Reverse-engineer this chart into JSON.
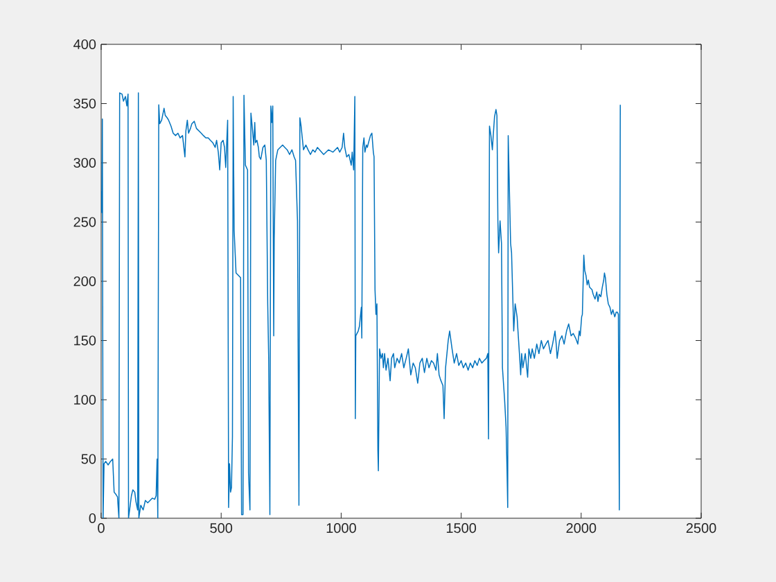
{
  "chart_data": {
    "type": "line",
    "color": "#0072bd",
    "line_style": "solid",
    "xlim": [
      0,
      2500
    ],
    "ylim": [
      0,
      400
    ],
    "xticks": [
      0,
      500,
      1000,
      1500,
      2000,
      2500
    ],
    "yticks": [
      0,
      50,
      100,
      150,
      200,
      250,
      300,
      350,
      400
    ],
    "x": [
      0,
      2,
      5,
      8,
      12,
      19,
      29,
      39,
      48,
      54,
      62,
      68,
      74,
      77,
      87,
      93,
      101,
      107,
      112,
      114,
      126,
      132,
      140,
      145,
      152,
      155,
      157,
      159,
      165,
      175,
      184,
      194,
      213,
      223,
      229,
      233,
      236,
      240,
      244,
      252,
      262,
      267,
      275,
      281,
      291,
      300,
      310,
      320,
      329,
      339,
      349,
      353,
      359,
      364,
      372,
      378,
      388,
      397,
      407,
      417,
      426,
      436,
      446,
      455,
      465,
      475,
      481,
      488,
      494,
      500,
      508,
      514,
      519,
      527,
      531,
      535,
      539,
      543,
      547,
      550,
      554,
      562,
      572,
      581,
      585,
      591,
      595,
      601,
      610,
      614,
      620,
      624,
      630,
      636,
      640,
      643,
      649,
      655,
      659,
      665,
      674,
      682,
      688,
      694,
      698,
      703,
      707,
      711,
      715,
      719,
      721,
      727,
      736,
      746,
      756,
      765,
      775,
      785,
      795,
      804,
      810,
      818,
      824,
      828,
      833,
      843,
      853,
      862,
      872,
      882,
      891,
      901,
      927,
      947,
      966,
      985,
      994,
      1004,
      1010,
      1015,
      1023,
      1032,
      1042,
      1046,
      1052,
      1057,
      1059,
      1061,
      1071,
      1076,
      1084,
      1086,
      1090,
      1095,
      1099,
      1105,
      1109,
      1114,
      1122,
      1128,
      1134,
      1137,
      1141,
      1145,
      1149,
      1153,
      1155,
      1160,
      1166,
      1172,
      1176,
      1181,
      1187,
      1195,
      1204,
      1210,
      1218,
      1223,
      1233,
      1242,
      1252,
      1261,
      1271,
      1280,
      1290,
      1300,
      1309,
      1319,
      1328,
      1338,
      1347,
      1357,
      1366,
      1376,
      1385,
      1395,
      1401,
      1408,
      1414,
      1424,
      1429,
      1435,
      1446,
      1452,
      1462,
      1471,
      1481,
      1490,
      1500,
      1509,
      1519,
      1529,
      1538,
      1548,
      1557,
      1567,
      1576,
      1586,
      1595,
      1605,
      1611,
      1614,
      1618,
      1624,
      1630,
      1633,
      1639,
      1645,
      1649,
      1653,
      1656,
      1662,
      1668,
      1672,
      1681,
      1687,
      1691,
      1694,
      1696,
      1706,
      1710,
      1719,
      1725,
      1733,
      1738,
      1744,
      1748,
      1752,
      1757,
      1767,
      1777,
      1782,
      1790,
      1796,
      1805,
      1815,
      1824,
      1834,
      1843,
      1853,
      1862,
      1872,
      1881,
      1891,
      1896,
      1900,
      1910,
      1920,
      1929,
      1939,
      1948,
      1958,
      1967,
      1977,
      1986,
      1992,
      1996,
      2002,
      2005,
      2011,
      2015,
      2020,
      2025,
      2030,
      2035,
      2045,
      2050,
      2058,
      2065,
      2070,
      2075,
      2082,
      2088,
      2094,
      2097,
      2101,
      2107,
      2113,
      2120,
      2126,
      2132,
      2140,
      2146,
      2151,
      2155,
      2159,
      2163
    ],
    "values": [
      276,
      258,
      337,
      0,
      46,
      48,
      45,
      48,
      50,
      22,
      20,
      18,
      0,
      359,
      358,
      352,
      356,
      348,
      358,
      0,
      19,
      24,
      22,
      14,
      7,
      359,
      0,
      3,
      11,
      7,
      15,
      13,
      17,
      16,
      19,
      50,
      0,
      349,
      333,
      336,
      346,
      340,
      338,
      336,
      331,
      325,
      323,
      325,
      321,
      323,
      305,
      327,
      336,
      325,
      329,
      333,
      335,
      329,
      327,
      325,
      323,
      321,
      321,
      319,
      317,
      313,
      319,
      309,
      294,
      317,
      319,
      313,
      296,
      336,
      9,
      46,
      22,
      26,
      69,
      356,
      243,
      207,
      205,
      203,
      3,
      3,
      357,
      298,
      294,
      38,
      7,
      342,
      329,
      315,
      334,
      317,
      319,
      313,
      305,
      303,
      313,
      315,
      302,
      181,
      135,
      3,
      348,
      334,
      348,
      154,
      236,
      302,
      311,
      313,
      315,
      313,
      311,
      307,
      311,
      305,
      302,
      251,
      11,
      338,
      331,
      311,
      315,
      311,
      307,
      311,
      309,
      313,
      307,
      311,
      309,
      313,
      309,
      313,
      325,
      313,
      305,
      307,
      298,
      309,
      294,
      356,
      84,
      154,
      158,
      162,
      178,
      152,
      313,
      321,
      309,
      315,
      313,
      317,
      323,
      325,
      309,
      305,
      193,
      172,
      181,
      57,
      40,
      143,
      135,
      139,
      127,
      139,
      125,
      135,
      116,
      135,
      139,
      127,
      135,
      131,
      139,
      127,
      135,
      143,
      121,
      131,
      127,
      114,
      131,
      135,
      123,
      135,
      127,
      133,
      131,
      125,
      139,
      121,
      117,
      112,
      84,
      127,
      150,
      158,
      143,
      131,
      139,
      129,
      133,
      127,
      131,
      125,
      131,
      127,
      133,
      129,
      135,
      131,
      133,
      135,
      139,
      67,
      331,
      323,
      311,
      321,
      339,
      345,
      340,
      251,
      224,
      251,
      232,
      127,
      100,
      77,
      42,
      9,
      323,
      232,
      224,
      158,
      181,
      170,
      154,
      135,
      121,
      139,
      127,
      139,
      119,
      143,
      135,
      143,
      135,
      147,
      139,
      150,
      143,
      147,
      150,
      139,
      147,
      158,
      147,
      135,
      150,
      154,
      147,
      158,
      164,
      154,
      156,
      152,
      147,
      158,
      154,
      170,
      172,
      222,
      209,
      205,
      197,
      201,
      195,
      193,
      189,
      185,
      191,
      183,
      189,
      187,
      195,
      201,
      207,
      203,
      189,
      181,
      178,
      172,
      176,
      170,
      174,
      174,
      172,
      7,
      349
    ]
  }
}
